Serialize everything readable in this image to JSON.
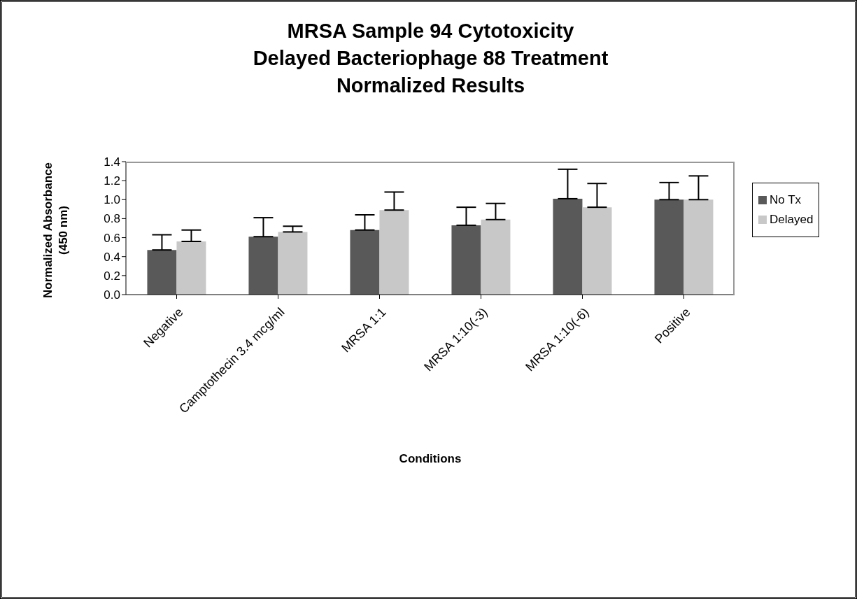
{
  "chart_data": {
    "type": "bar",
    "title": "MRSA Sample 94 Cytotoxicity\nDelayed Bacteriophage 88 Treatment\nNormalized Results",
    "xlabel": "Conditions",
    "ylabel": "Normalized Absorbance\n(450 nm)",
    "categories": [
      "Negative",
      "Camptothecin 3.4 mcg/ml",
      "MRSA 1:1",
      "MRSA 1:10(-3)",
      "MRSA 1:10(-6)",
      "Positive"
    ],
    "series": [
      {
        "name": "No Tx",
        "color": "#595959",
        "values": [
          0.47,
          0.61,
          0.68,
          0.73,
          1.01,
          1.0
        ],
        "errors": [
          [
            0.47,
            0.63
          ],
          [
            0.61,
            0.81
          ],
          [
            0.68,
            0.84
          ],
          [
            0.73,
            0.92
          ],
          [
            1.01,
            1.32
          ],
          [
            1.0,
            1.18
          ]
        ]
      },
      {
        "name": "Delayed",
        "color": "#c8c8c8",
        "values": [
          0.56,
          0.66,
          0.89,
          0.79,
          0.92,
          1.0
        ],
        "errors": [
          [
            0.56,
            0.68
          ],
          [
            0.66,
            0.72
          ],
          [
            0.89,
            1.08
          ],
          [
            0.79,
            0.96
          ],
          [
            0.92,
            1.17
          ],
          [
            1.0,
            1.25
          ]
        ]
      }
    ],
    "ylim": [
      0,
      1.4
    ],
    "yticks": [
      {
        "value": 0,
        "label": "0.0"
      },
      {
        "value": 0.2,
        "label": "0.2"
      },
      {
        "value": 0.4,
        "label": "0.4"
      },
      {
        "value": 0.6,
        "label": "0.6"
      },
      {
        "value": 0.8,
        "label": "0.8"
      },
      {
        "value": 1,
        "label": "1.0"
      },
      {
        "value": 1.2,
        "label": "1.2"
      },
      {
        "value": 1.4,
        "label": "1.4"
      }
    ],
    "legend": "right",
    "grid": false
  }
}
